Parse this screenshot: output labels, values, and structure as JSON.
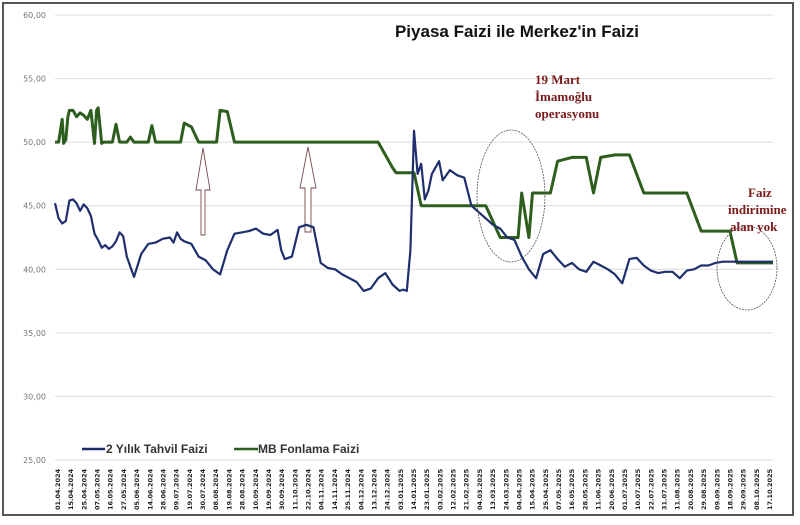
{
  "chart_data": {
    "type": "line",
    "title": "Piyasa Faizi ile Merkez'in Faizi",
    "xlabel": "",
    "ylabel": "",
    "ylim": [
      25,
      60
    ],
    "yticks": [
      "60,00",
      "55,00",
      "50,00",
      "45,00",
      "40,00",
      "35,00",
      "30,00",
      "25,00"
    ],
    "ytick_values": [
      60,
      55,
      50,
      45,
      40,
      35,
      30,
      25
    ],
    "grid": true,
    "legend_position": "bottom-left",
    "x_tick_labels": [
      "01.04.2024",
      "15.04.2024",
      "25.04.2024",
      "07.05.2024",
      "16.05.2024",
      "27.05.2024",
      "05.06.2024",
      "14.06.2024",
      "28.06.2024",
      "09.07.2024",
      "19.07.2024",
      "30.07.2024",
      "08.08.2024",
      "19.08.2024",
      "28.08.2024",
      "10.09.2024",
      "19.09.2024",
      "30.09.2024",
      "11.10.2024",
      "22.10.2024",
      "04.11.2024",
      "14.11.2024",
      "25.11.2024",
      "04.12.2024",
      "13.12.2024",
      "24.12.2024",
      "03.01.2025",
      "14.01.2025",
      "23.01.2025",
      "03.02.2025",
      "12.02.2025",
      "21.02.2025",
      "04.03.2025",
      "13.03.2025",
      "24.03.2025",
      "04.04.2025",
      "15.04.2025",
      "25.04.2025",
      "07.05.2025",
      "16.05.2025",
      "28.05.2025",
      "11.06.2025",
      "20.06.2025",
      "01.07.2025",
      "10.07.2025",
      "22.07.2025",
      "31.07.2025",
      "11.08.2025",
      "20.08.2025",
      "29.08.2025",
      "09.09.2025",
      "18.09.2025",
      "29.09.2025",
      "08.10.2025",
      "17.10.2025"
    ],
    "series": [
      {
        "name": "2 Yıllık Tahvil Faizi",
        "color": "#1f2f6e",
        "x": [
          0,
          0.005,
          0.01,
          0.015,
          0.02,
          0.025,
          0.03,
          0.035,
          0.04,
          0.045,
          0.05,
          0.055,
          0.06,
          0.065,
          0.07,
          0.075,
          0.08,
          0.085,
          0.09,
          0.095,
          0.1,
          0.11,
          0.12,
          0.13,
          0.14,
          0.15,
          0.16,
          0.165,
          0.17,
          0.175,
          0.18,
          0.19,
          0.2,
          0.21,
          0.22,
          0.23,
          0.24,
          0.25,
          0.26,
          0.27,
          0.28,
          0.29,
          0.3,
          0.31,
          0.315,
          0.32,
          0.33,
          0.34,
          0.35,
          0.36,
          0.37,
          0.38,
          0.39,
          0.4,
          0.41,
          0.42,
          0.43,
          0.44,
          0.45,
          0.46,
          0.47,
          0.48,
          0.485,
          0.49,
          0.495,
          0.5,
          0.505,
          0.51,
          0.515,
          0.52,
          0.525,
          0.53,
          0.535,
          0.54,
          0.55,
          0.56,
          0.57,
          0.58,
          0.59,
          0.6,
          0.61,
          0.62,
          0.63,
          0.64,
          0.65,
          0.66,
          0.67,
          0.68,
          0.69,
          0.7,
          0.71,
          0.72,
          0.73,
          0.74,
          0.75,
          0.76,
          0.77,
          0.78,
          0.79,
          0.8,
          0.81,
          0.82,
          0.83,
          0.84,
          0.85,
          0.86,
          0.87,
          0.88,
          0.89,
          0.9,
          0.91,
          0.92,
          0.93,
          0.94,
          0.95,
          0.96,
          0.97,
          0.98,
          0.99,
          1.0
        ],
        "values": [
          45.2,
          44.0,
          43.6,
          43.8,
          45.4,
          45.5,
          45.2,
          44.6,
          45.1,
          44.8,
          44.2,
          42.8,
          42.3,
          41.7,
          41.9,
          41.6,
          41.8,
          42.2,
          42.9,
          42.6,
          41.0,
          39.4,
          41.2,
          42.0,
          42.1,
          42.4,
          42.5,
          42.1,
          42.9,
          42.4,
          42.2,
          42.0,
          41.0,
          40.7,
          40.0,
          39.6,
          41.5,
          42.8,
          42.9,
          43.0,
          43.2,
          42.8,
          42.7,
          43.1,
          41.5,
          40.8,
          41.0,
          43.3,
          43.5,
          43.3,
          40.5,
          40.1,
          40.0,
          39.6,
          39.3,
          39.0,
          38.3,
          38.5,
          39.3,
          39.7,
          38.8,
          38.3,
          38.4,
          38.3,
          41.5,
          50.9,
          47.5,
          48.3,
          45.5,
          46.2,
          47.5,
          48.0,
          48.5,
          47.0,
          47.8,
          47.4,
          47.2,
          45.0,
          44.5,
          44.0,
          43.5,
          43.2,
          42.5,
          42.3,
          41.0,
          40.0,
          39.3,
          41.2,
          41.5,
          40.8,
          40.2,
          40.5,
          40.0,
          39.8,
          40.6,
          40.3,
          40.0,
          39.6,
          38.9,
          40.8,
          40.9,
          40.3,
          39.9,
          39.7,
          39.8,
          39.8,
          39.3,
          39.9,
          40.0,
          40.3,
          40.3,
          40.5,
          40.6,
          40.6,
          40.6,
          40.6,
          40.6,
          40.6,
          40.6,
          40.6
        ]
      },
      {
        "name": "MB Fonlama Faizi",
        "color": "#2e5e1e",
        "x": [
          0,
          0.005,
          0.01,
          0.012,
          0.015,
          0.018,
          0.02,
          0.025,
          0.03,
          0.035,
          0.04,
          0.045,
          0.05,
          0.055,
          0.058,
          0.06,
          0.065,
          0.068,
          0.07,
          0.075,
          0.08,
          0.085,
          0.09,
          0.1,
          0.105,
          0.11,
          0.115,
          0.12,
          0.13,
          0.135,
          0.14,
          0.15,
          0.16,
          0.165,
          0.17,
          0.175,
          0.18,
          0.19,
          0.2,
          0.21,
          0.22,
          0.225,
          0.23,
          0.24,
          0.25,
          0.26,
          0.265,
          0.27,
          0.275,
          0.28,
          0.3,
          0.4,
          0.45,
          0.47,
          0.475,
          0.5,
          0.51,
          0.515,
          0.53,
          0.55,
          0.6,
          0.62,
          0.63,
          0.64,
          0.645,
          0.65,
          0.66,
          0.665,
          0.67,
          0.675,
          0.68,
          0.69,
          0.7,
          0.72,
          0.74,
          0.75,
          0.76,
          0.78,
          0.8,
          0.82,
          0.83,
          0.84,
          0.85,
          0.855,
          0.86,
          0.87,
          0.88,
          0.9,
          0.92,
          0.93,
          0.94,
          0.95,
          0.96,
          0.97,
          0.98,
          1.0
        ],
        "values": [
          50.0,
          50.0,
          51.8,
          49.9,
          50.2,
          52.0,
          52.5,
          52.5,
          52.0,
          52.3,
          52.1,
          51.8,
          52.5,
          49.9,
          52.5,
          52.7,
          49.9,
          50.0,
          50.0,
          50.0,
          50.0,
          51.4,
          50.0,
          50.0,
          50.4,
          50.0,
          50.0,
          50.0,
          50.0,
          51.3,
          50.0,
          50.0,
          50.0,
          50.0,
          50.0,
          50.0,
          51.5,
          51.2,
          50.0,
          50.0,
          50.0,
          50.0,
          52.5,
          52.4,
          50.0,
          50.0,
          50.0,
          50.0,
          50.0,
          50.0,
          50.0,
          50.0,
          50.0,
          48.0,
          47.6,
          47.6,
          45.0,
          45.0,
          45.0,
          45.0,
          45.0,
          42.5,
          42.5,
          42.5,
          42.5,
          46.0,
          42.5,
          46.0,
          46.0,
          46.0,
          46.0,
          46.0,
          48.5,
          48.8,
          48.8,
          46.0,
          48.8,
          49.0,
          49.0,
          46.0,
          46.0,
          46.0,
          46.0,
          46.0,
          46.0,
          46.0,
          46.0,
          43.0,
          43.0,
          43.0,
          43.0,
          40.5,
          40.5,
          40.5,
          40.5,
          40.5
        ]
      }
    ],
    "annotations": [
      {
        "text_lines": [
          "19 Mart",
          "İmamoğlu",
          "operasyonu"
        ],
        "note": "circle around March 2025 spike"
      },
      {
        "text_lines": [
          "Faiz",
          "indirimine",
          "alan yok"
        ],
        "note": "circle around October 2025"
      }
    ]
  },
  "title": "Piyasa Faizi ile Merkez'in Faizi",
  "legend": {
    "series1": "2 Yılık Tahvil Faizi",
    "series2": "MB Fonlama Faizi"
  },
  "annotations": {
    "march_line1": "19 Mart",
    "march_line2": "İmamoğlu",
    "march_line3": "operasyonu",
    "faiz_line1": "Faiz",
    "faiz_line2": "indirimine",
    "faiz_line3": "alan yok"
  }
}
